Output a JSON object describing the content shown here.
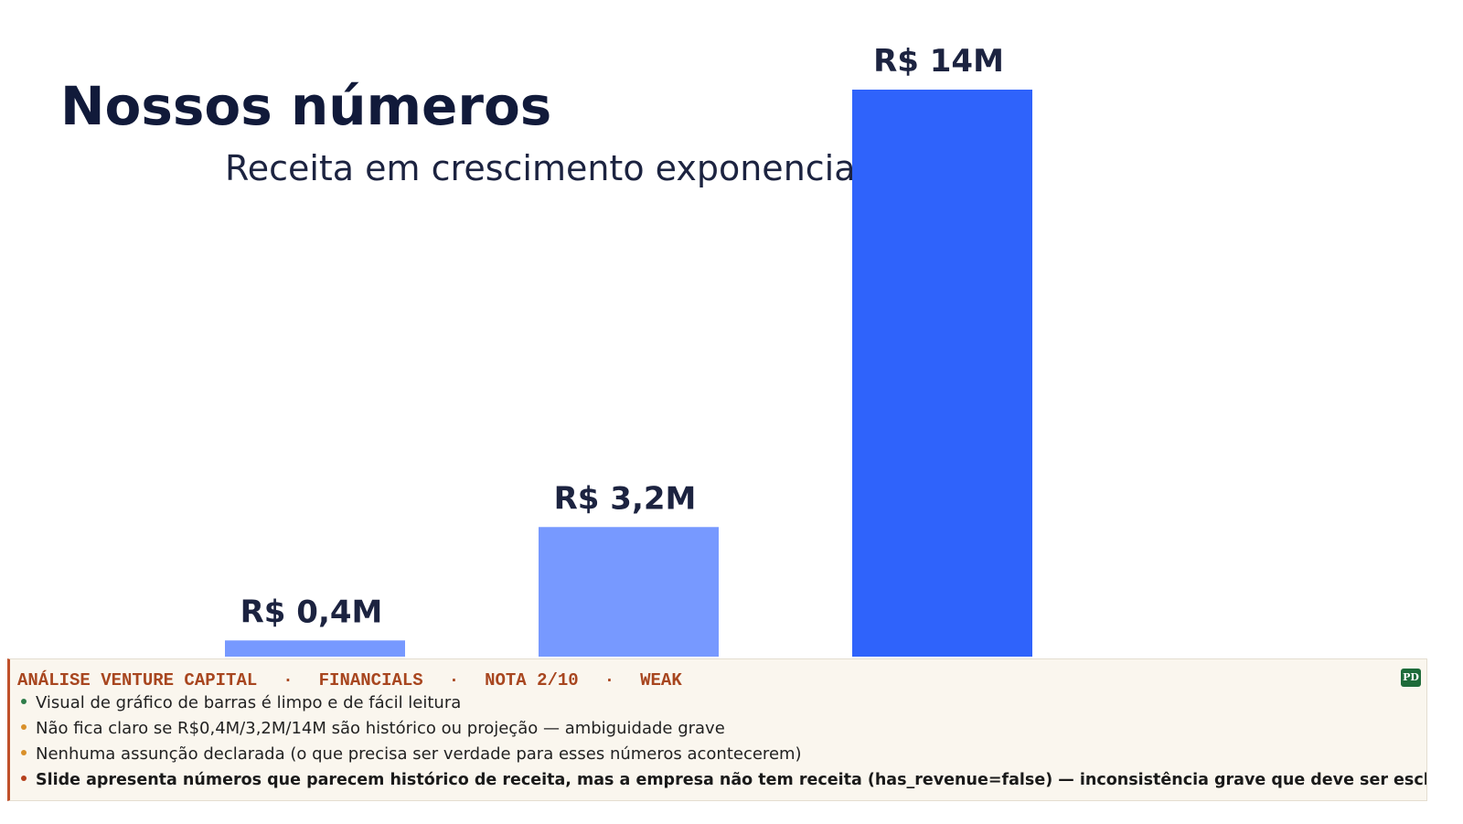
{
  "chart_data": {
    "type": "bar",
    "title": "Nossos números",
    "subtitle": "Receita em crescimento exponencial",
    "values": [
      0.4,
      3.2,
      14
    ],
    "value_labels": [
      "R$ 0,4M",
      "R$ 3,2M",
      "R$ 14M"
    ],
    "colors": [
      "#7799ff",
      "#7799ff",
      "#2f63fb"
    ]
  },
  "review": {
    "header": [
      "ANÁLISE VENTURE CAPITAL",
      "FINANCIALS",
      "NOTA 2/10",
      "WEAK"
    ],
    "separator": "·",
    "badge": "PD",
    "bullets": [
      "Visual de gráfico de barras é limpo e de fácil leitura",
      "Não fica claro se R$0,4M/3,2M/14M são histórico ou projeção — ambiguidade grave",
      "Nenhuma assunção declarada (o que precisa ser verdade para esses números acontecerem)",
      "Slide apresenta números que parecem histórico de receita, mas a empresa não tem receita (has_revenue=false) — inconsistência grave que deve ser esclare…"
    ]
  }
}
